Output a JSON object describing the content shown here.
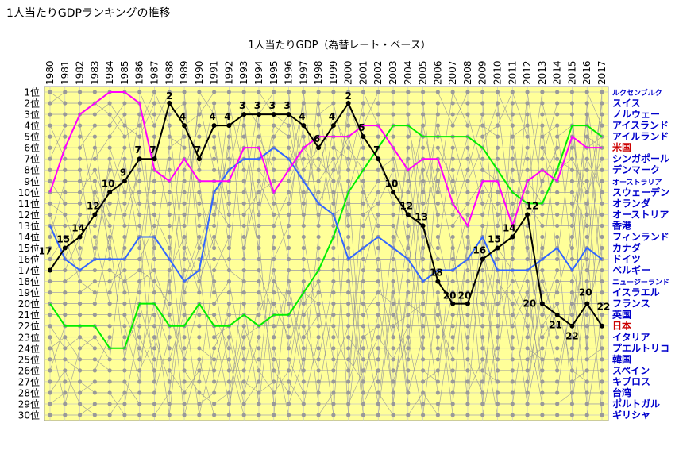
{
  "page_title": "1人当たりGDPランキングの推移",
  "chart_data": {
    "type": "line",
    "title": "1人当たりGDP（為替レート・ベース）",
    "xlabel": "",
    "ylabel": "",
    "x": [
      1980,
      1981,
      1982,
      1983,
      1984,
      1985,
      1986,
      1987,
      1988,
      1989,
      1990,
      1991,
      1992,
      1993,
      1994,
      1995,
      1996,
      1997,
      1998,
      1999,
      2000,
      2001,
      2002,
      2003,
      2004,
      2005,
      2006,
      2007,
      2008,
      2009,
      2010,
      2011,
      2012,
      2013,
      2014,
      2015,
      2016,
      2017
    ],
    "y_ticks": [
      "1位",
      "2位",
      "3位",
      "4位",
      "5位",
      "6位",
      "7位",
      "8位",
      "9位",
      "10位",
      "11位",
      "12位",
      "13位",
      "14位",
      "15位",
      "16位",
      "17位",
      "18位",
      "19位",
      "20位",
      "21位",
      "22位",
      "23位",
      "24位",
      "25位",
      "26位",
      "27位",
      "28位",
      "29位",
      "30位"
    ],
    "ylim": [
      1,
      30
    ],
    "y_inverted": true,
    "grid": true,
    "legend_position": "right",
    "legend": [
      "ルクセンブルク",
      "スイス",
      "ノルウェー",
      "アイスランド",
      "アイルランド",
      "米国",
      "シンガポール",
      "デンマーク",
      "オーストラリア",
      "スウェーデン",
      "オランダ",
      "オーストリア",
      "香港",
      "フィンランド",
      "カナダ",
      "ドイツ",
      "ベルギー",
      "ニュージーランド",
      "イスラエル",
      "フランス",
      "英国",
      "日本",
      "イタリア",
      "プエルトリコ",
      "韓国",
      "スペイン",
      "キプロス",
      "台湾",
      "ポルトガル",
      "ギリシャ"
    ],
    "legend_colors": {
      "米国": "#cc0000",
      "日本": "#cc0000"
    },
    "series": [
      {
        "name": "日本",
        "color": "#000000",
        "values": [
          17,
          15,
          14,
          12,
          10,
          9,
          7,
          7,
          2,
          4,
          7,
          4,
          4,
          3,
          3,
          3,
          3,
          4,
          6,
          4,
          2,
          5,
          7,
          10,
          12,
          13,
          18,
          20,
          20,
          16,
          15,
          14,
          12,
          20,
          21,
          22,
          20,
          22
        ],
        "labels": true
      },
      {
        "name": "米国",
        "color": "#ff00ff",
        "values": [
          10,
          6,
          3,
          2,
          1,
          1,
          2,
          8,
          9,
          7,
          9,
          9,
          9,
          6,
          6,
          10,
          8,
          6,
          5,
          5,
          5,
          4,
          4,
          6,
          8,
          7,
          7,
          11,
          13,
          9,
          9,
          13,
          9,
          8,
          9,
          5,
          6,
          6
        ],
        "labels": false
      },
      {
        "name": "ドイツ",
        "color": "#3366ff",
        "values": [
          13,
          16,
          17,
          16,
          16,
          16,
          14,
          14,
          16,
          18,
          17,
          10,
          8,
          7,
          7,
          6,
          7,
          9,
          11,
          12,
          16,
          15,
          14,
          15,
          16,
          18,
          17,
          17,
          16,
          14,
          17,
          17,
          17,
          16,
          15,
          17,
          15,
          16
        ],
        "labels": false
      },
      {
        "name": "アイルランド",
        "color": "#00ee00",
        "values": [
          20,
          22,
          22,
          22,
          24,
          24,
          20,
          20,
          22,
          22,
          20,
          22,
          22,
          21,
          22,
          21,
          21,
          19,
          17,
          14,
          10,
          8,
          6,
          4,
          4,
          5,
          5,
          5,
          5,
          6,
          8,
          10,
          11,
          11,
          8,
          4,
          4,
          5
        ],
        "labels": false
      }
    ]
  }
}
